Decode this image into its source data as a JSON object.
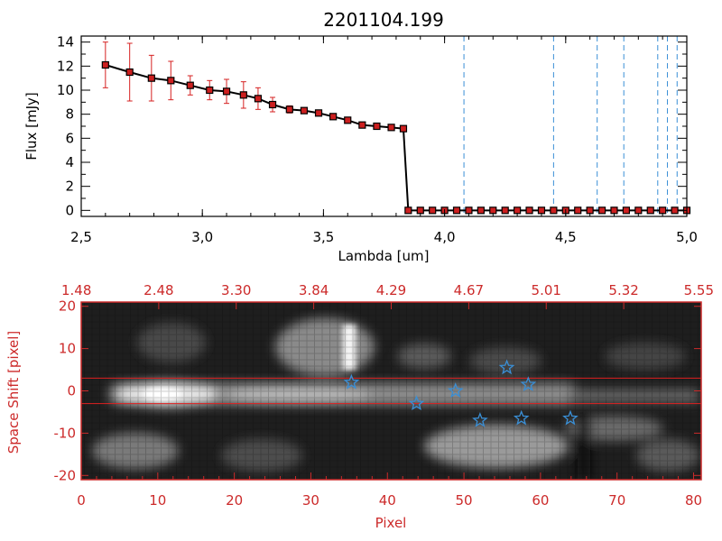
{
  "colors": {
    "top_axis": "#000000",
    "spectrum_line": "#000000",
    "marker": "#cc1f1f",
    "error_bar": "#d62020",
    "dashed_line": "#3a8fd6",
    "bottom_axis": "#cc2a2a",
    "star": "#3a8fd6",
    "aperture_line": "#e02020"
  },
  "chart_data": [
    {
      "id": "spectrum",
      "type": "line",
      "title": "2201104.199",
      "xlabel": "Lambda [um]",
      "ylabel": "Flux [mJy]",
      "xlim": [
        2.5,
        5.0
      ],
      "ylim": [
        -0.5,
        14.5
      ],
      "xticks": [
        2.5,
        3.0,
        3.5,
        4.0,
        4.5,
        5.0
      ],
      "xtick_labels": [
        "2,5",
        "3,0",
        "3,5",
        "4,0",
        "4,5",
        "5,0"
      ],
      "yticks": [
        0,
        2,
        4,
        6,
        8,
        10,
        12,
        14
      ],
      "ytick_labels": [
        "0",
        "2",
        "4",
        "6",
        "8",
        "10",
        "12",
        "14"
      ],
      "series": [
        {
          "name": "flux",
          "x": [
            2.6,
            2.7,
            2.79,
            2.87,
            2.95,
            3.03,
            3.1,
            3.17,
            3.23,
            3.29,
            3.36,
            3.42,
            3.48,
            3.54,
            3.6,
            3.66,
            3.72,
            3.78,
            3.83,
            3.85,
            3.9,
            3.95,
            4.0,
            4.05,
            4.1,
            4.15,
            4.2,
            4.25,
            4.3,
            4.35,
            4.4,
            4.45,
            4.5,
            4.55,
            4.6,
            4.65,
            4.7,
            4.75,
            4.8,
            4.85,
            4.9,
            4.95,
            5.0
          ],
          "y": [
            12.1,
            11.5,
            11.0,
            10.8,
            10.4,
            10.0,
            9.9,
            9.6,
            9.3,
            8.8,
            8.4,
            8.3,
            8.1,
            7.8,
            7.5,
            7.1,
            7.0,
            6.9,
            6.8,
            0,
            0,
            0,
            0,
            0,
            0,
            0,
            0,
            0,
            0,
            0,
            0,
            0,
            0,
            0,
            0,
            0,
            0,
            0,
            0,
            0,
            0,
            0,
            0
          ],
          "yerr": [
            1.9,
            2.4,
            1.9,
            1.6,
            0.8,
            0.8,
            1.0,
            1.1,
            0.9,
            0.6,
            0.3,
            0.2,
            0.2,
            0.2,
            0.2,
            0.2,
            0.2,
            0.2,
            0.2,
            0,
            0,
            0,
            0,
            0,
            0,
            0,
            0,
            0,
            0,
            0,
            0,
            0,
            0,
            0,
            0,
            0,
            0,
            0,
            0,
            0,
            0,
            0,
            0
          ]
        }
      ],
      "vertical_dashed_lines": [
        4.08,
        4.45,
        4.63,
        4.74,
        4.88,
        4.92,
        4.96
      ]
    },
    {
      "id": "spectral_image",
      "type": "heatmap",
      "xlabel": "Pixel",
      "ylabel": "Space Shift [pixel]",
      "xlim": [
        0,
        81
      ],
      "ylim": [
        -21,
        21
      ],
      "xticks": [
        0,
        10,
        20,
        30,
        40,
        50,
        60,
        70,
        80
      ],
      "yticks": [
        -20,
        -10,
        0,
        10,
        20
      ],
      "top_axis_labels": [
        "1.48",
        "2.48",
        "3.30",
        "3.84",
        "4.29",
        "4.67",
        "5.01",
        "5.32",
        "5.55"
      ],
      "aperture_lines_y": [
        3,
        -3
      ],
      "star_markers": [
        {
          "x": 35.3,
          "y": 2
        },
        {
          "x": 43.8,
          "y": -3
        },
        {
          "x": 48.9,
          "y": 0
        },
        {
          "x": 52.1,
          "y": -7
        },
        {
          "x": 55.6,
          "y": 5.5
        },
        {
          "x": 57.5,
          "y": -6.5
        },
        {
          "x": 58.4,
          "y": 1.5
        },
        {
          "x": 63.9,
          "y": -6.5
        }
      ]
    }
  ]
}
